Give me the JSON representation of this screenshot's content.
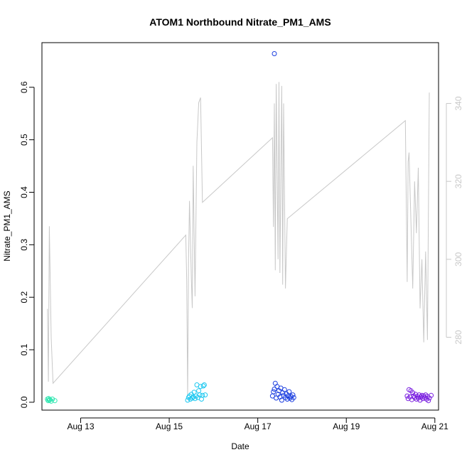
{
  "chart_data": {
    "type": "scatter",
    "title": "ATOM1 Northbound Nitrate_PM1_AMS",
    "xlabel": "Date",
    "ylabel": "Nitrate_PM1_AMS",
    "xlim": [
      "2016-08-12T03:00",
      "2016-08-21T02:00"
    ],
    "ylim": [
      -0.015,
      0.685
    ],
    "x_ticks": [
      {
        "date": "2016-08-13T00:00",
        "label": "Aug 13"
      },
      {
        "date": "2016-08-15T00:00",
        "label": "Aug 15"
      },
      {
        "date": "2016-08-17T00:00",
        "label": "Aug 17"
      },
      {
        "date": "2016-08-19T00:00",
        "label": "Aug 19"
      },
      {
        "date": "2016-08-21T00:00",
        "label": "Aug 21"
      }
    ],
    "y_ticks": [
      "0.0",
      "0.1",
      "0.2",
      "0.3",
      "0.4",
      "0.5",
      "0.6"
    ],
    "y2": {
      "ylim": [
        261.3,
        355.6
      ],
      "ticks": [
        "280",
        "300",
        "320",
        "340"
      ],
      "color": "#c8c8c8"
    },
    "grid": false,
    "series": [
      {
        "color": "#2ee6b0",
        "points": [
          [
            "2016-08-12T06:00",
            0.006
          ],
          [
            "2016-08-12T06:20",
            0.003
          ],
          [
            "2016-08-12T06:40",
            0.007
          ],
          [
            "2016-08-12T07:00",
            0.004
          ],
          [
            "2016-08-12T07:20",
            0.005
          ],
          [
            "2016-08-12T08:00",
            0.002
          ],
          [
            "2016-08-12T08:40",
            0.006
          ],
          [
            "2016-08-12T10:00",
            0.003
          ]
        ]
      },
      {
        "color": "#1ec8f0",
        "points": [
          [
            "2016-08-15T10:00",
            0.004
          ],
          [
            "2016-08-15T10:30",
            0.009
          ],
          [
            "2016-08-15T11:00",
            0.012
          ],
          [
            "2016-08-15T11:30",
            0.006
          ],
          [
            "2016-08-15T12:00",
            0.015
          ],
          [
            "2016-08-15T12:30",
            0.008
          ],
          [
            "2016-08-15T13:00",
            0.01
          ],
          [
            "2016-08-15T13:30",
            0.019
          ],
          [
            "2016-08-15T14:00",
            0.007
          ],
          [
            "2016-08-15T14:30",
            0.012
          ],
          [
            "2016-08-15T15:00",
            0.033
          ],
          [
            "2016-08-15T15:30",
            0.009
          ],
          [
            "2016-08-15T16:00",
            0.022
          ],
          [
            "2016-08-15T16:30",
            0.014
          ],
          [
            "2016-08-15T17:00",
            0.03
          ],
          [
            "2016-08-15T17:30",
            0.006
          ],
          [
            "2016-08-15T18:00",
            0.013
          ],
          [
            "2016-08-15T18:30",
            0.031
          ],
          [
            "2016-08-15T19:00",
            0.033
          ],
          [
            "2016-08-15T19:30",
            0.014
          ]
        ]
      },
      {
        "color": "#1c3fe0",
        "points": [
          [
            "2016-08-17T09:00",
            0.664
          ],
          [
            "2016-08-17T08:00",
            0.012
          ],
          [
            "2016-08-17T08:30",
            0.02
          ],
          [
            "2016-08-17T09:00",
            0.025
          ],
          [
            "2016-08-17T09:30",
            0.036
          ],
          [
            "2016-08-17T10:00",
            0.008
          ],
          [
            "2016-08-17T10:30",
            0.03
          ],
          [
            "2016-08-17T11:00",
            0.015
          ],
          [
            "2016-08-17T11:30",
            0.022
          ],
          [
            "2016-08-17T12:00",
            0.01
          ],
          [
            "2016-08-17T12:30",
            0.027
          ],
          [
            "2016-08-17T13:00",
            0.004
          ],
          [
            "2016-08-17T13:30",
            0.018
          ],
          [
            "2016-08-17T14:00",
            0.013
          ],
          [
            "2016-08-17T14:30",
            0.024
          ],
          [
            "2016-08-17T15:00",
            0.009
          ],
          [
            "2016-08-17T15:30",
            0.016
          ],
          [
            "2016-08-17T16:00",
            0.006
          ],
          [
            "2016-08-17T16:30",
            0.012
          ],
          [
            "2016-08-17T17:00",
            0.02
          ],
          [
            "2016-08-17T17:30",
            0.008
          ],
          [
            "2016-08-17T18:00",
            0.011
          ],
          [
            "2016-08-17T18:30",
            0.005
          ],
          [
            "2016-08-17T19:00",
            0.014
          ],
          [
            "2016-08-17T19:30",
            0.009
          ]
        ]
      },
      {
        "color": "#7a1fe0",
        "points": [
          [
            "2016-08-20T09:00",
            0.012
          ],
          [
            "2016-08-20T09:30",
            0.007
          ],
          [
            "2016-08-20T10:00",
            0.024
          ],
          [
            "2016-08-20T10:30",
            0.01
          ],
          [
            "2016-08-20T11:00",
            0.022
          ],
          [
            "2016-08-20T11:30",
            0.005
          ],
          [
            "2016-08-20T12:00",
            0.018
          ],
          [
            "2016-08-20T12:30",
            0.012
          ],
          [
            "2016-08-20T13:00",
            0.009
          ],
          [
            "2016-08-20T13:30",
            0.015
          ],
          [
            "2016-08-20T14:00",
            0.006
          ],
          [
            "2016-08-20T14:30",
            0.011
          ],
          [
            "2016-08-20T15:00",
            0.008
          ],
          [
            "2016-08-20T15:30",
            0.014
          ],
          [
            "2016-08-20T16:00",
            0.004
          ],
          [
            "2016-08-20T16:30",
            0.01
          ],
          [
            "2016-08-20T17:00",
            0.013
          ],
          [
            "2016-08-20T17:30",
            0.007
          ],
          [
            "2016-08-20T18:00",
            0.012
          ],
          [
            "2016-08-20T18:30",
            0.009
          ],
          [
            "2016-08-20T19:00",
            0.014
          ],
          [
            "2016-08-20T19:30",
            0.006
          ],
          [
            "2016-08-20T20:00",
            0.011
          ],
          [
            "2016-08-20T20:30",
            0.003
          ],
          [
            "2016-08-20T21:00",
            0.008
          ],
          [
            "2016-08-20T22:00",
            0.013
          ]
        ]
      }
    ],
    "secondary_line": {
      "color": "#c8c8c8",
      "points": [
        [
          "2016-08-12T06:00",
          287.3
        ],
        [
          "2016-08-12T06:30",
          268.6
        ],
        [
          "2016-08-12T07:00",
          308.5
        ],
        [
          "2016-08-12T08:00",
          280.0
        ],
        [
          "2016-08-12T09:00",
          268.2
        ],
        [
          "2016-08-15T09:00",
          306.2
        ],
        [
          "2016-08-15T09:30",
          294.5
        ],
        [
          "2016-08-15T10:00",
          264.9
        ],
        [
          "2016-08-15T10:30",
          299.9
        ],
        [
          "2016-08-15T11:00",
          315.0
        ],
        [
          "2016-08-15T12:00",
          295.0
        ],
        [
          "2016-08-15T12:30",
          287.5
        ],
        [
          "2016-08-15T13:00",
          324.0
        ],
        [
          "2016-08-15T14:00",
          290.5
        ],
        [
          "2016-08-15T15:00",
          330.0
        ],
        [
          "2016-08-15T16:00",
          340.2
        ],
        [
          "2016-08-15T17:00",
          341.5
        ],
        [
          "2016-08-15T18:00",
          314.6
        ],
        [
          "2016-08-17T08:00",
          331.2
        ],
        [
          "2016-08-17T08:30",
          308.3
        ],
        [
          "2016-08-17T09:00",
          340.0
        ],
        [
          "2016-08-17T09:30",
          297.2
        ],
        [
          "2016-08-17T10:00",
          345.0
        ],
        [
          "2016-08-17T11:00",
          300.0
        ],
        [
          "2016-08-17T11:30",
          345.5
        ],
        [
          "2016-08-17T12:00",
          296.5
        ],
        [
          "2016-08-17T13:00",
          344.5
        ],
        [
          "2016-08-17T13:30",
          293.5
        ],
        [
          "2016-08-17T14:00",
          340.0
        ],
        [
          "2016-08-17T15:00",
          292.5
        ],
        [
          "2016-08-17T16:00",
          310.4
        ],
        [
          "2016-08-20T08:00",
          335.6
        ],
        [
          "2016-08-20T09:00",
          294.2
        ],
        [
          "2016-08-20T09:30",
          325.0
        ],
        [
          "2016-08-20T10:00",
          327.4
        ],
        [
          "2016-08-20T11:00",
          310.0
        ],
        [
          "2016-08-20T12:00",
          292.5
        ],
        [
          "2016-08-20T13:00",
          320.0
        ],
        [
          "2016-08-20T14:00",
          306.7
        ],
        [
          "2016-08-20T15:00",
          323.5
        ],
        [
          "2016-08-20T16:00",
          287.4
        ],
        [
          "2016-08-20T17:00",
          300.0
        ],
        [
          "2016-08-20T18:00",
          278.7
        ],
        [
          "2016-08-20T19:00",
          302.0
        ],
        [
          "2016-08-20T20:00",
          279.3
        ],
        [
          "2016-08-20T21:00",
          342.8
        ]
      ]
    }
  }
}
